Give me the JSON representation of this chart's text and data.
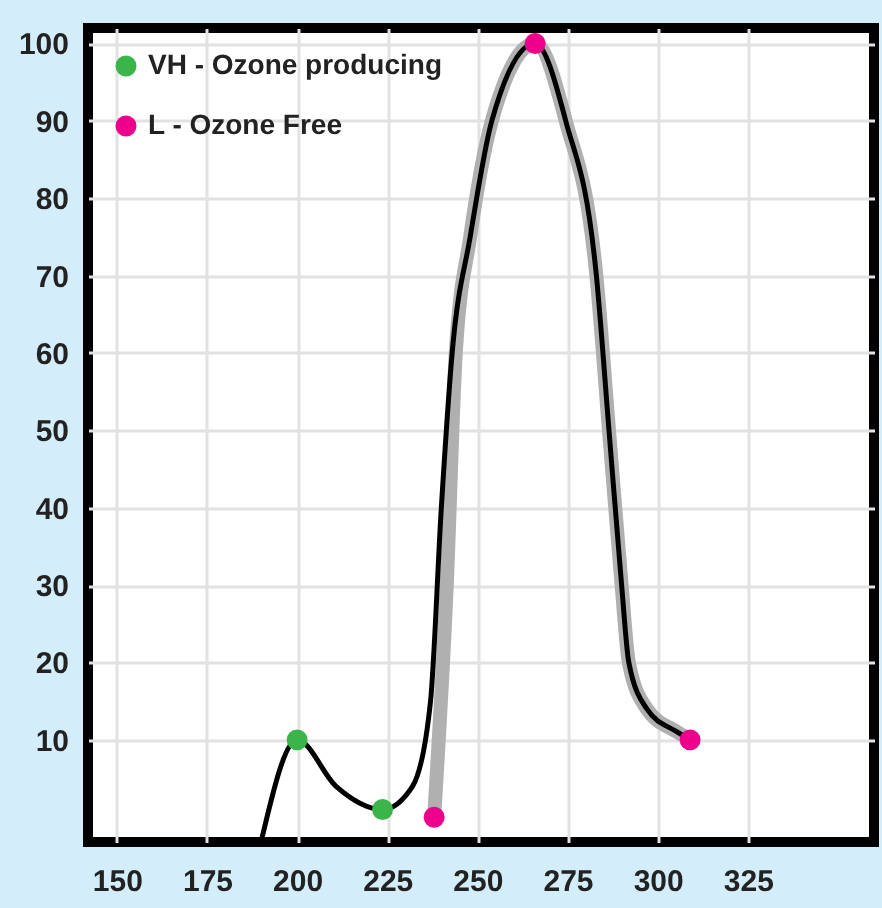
{
  "chart_data": {
    "type": "line",
    "xlim": [
      142,
      360
    ],
    "ylim": [
      -3.2,
      102
    ],
    "xticks": [
      150,
      175,
      200,
      225,
      250,
      275,
      300,
      325
    ],
    "yticks": [
      10,
      20,
      30,
      40,
      50,
      60,
      70,
      80,
      90,
      100
    ],
    "grid": true,
    "legend": "top left",
    "series": [
      {
        "color": "#b0b0b0",
        "x": [
          238,
          241.5,
          244,
          248,
          254,
          266,
          274.5,
          283,
          286.5,
          290,
          292,
          297,
          305.5,
          309
        ],
        "values": [
          0,
          30,
          60,
          75,
          90,
          100,
          90,
          70,
          50,
          30,
          20,
          14,
          11,
          10
        ]
      },
      {
        "color": "#000000",
        "x": [
          190,
          200,
          210.8,
          223.7,
          232,
          237,
          240,
          243,
          248,
          254,
          266,
          274.5,
          283,
          286.5,
          290,
          292,
          297,
          305.5,
          309
        ],
        "values": [
          -3.2,
          10,
          4,
          1,
          4,
          15,
          40,
          60,
          75,
          90,
          100,
          90,
          70,
          50,
          30,
          20,
          14,
          11,
          10
        ]
      },
      {
        "type": "scatter",
        "name": "VH - Ozone producing",
        "color": "#3ab54a",
        "marker": "circle",
        "x": [
          200,
          223.7
        ],
        "values": [
          10,
          1
        ]
      },
      {
        "type": "scatter",
        "name": "L - Ozone Free",
        "color": "#ec008c",
        "marker": "circle",
        "x": [
          238,
          266,
          309
        ],
        "values": [
          0,
          100,
          10
        ]
      }
    ]
  }
}
